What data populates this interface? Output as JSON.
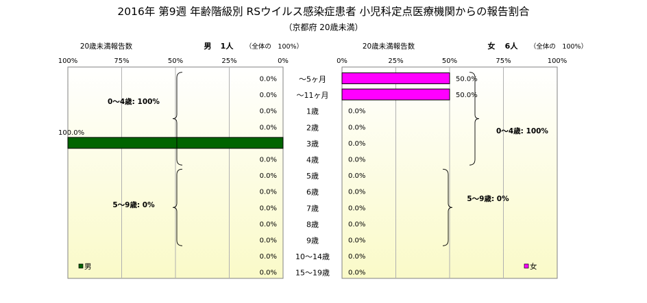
{
  "title": "2016年 第9週 年齢階級別 RSウイルス感染症患者 小児科定点医療機関からの報告割合",
  "subtitle": "（京都府 20歳未満）",
  "colors": {
    "male": "#006400",
    "female": "#ff00ff",
    "bg_top": "#ffffff",
    "bg_bottom": "#fafac8"
  },
  "chart_data": {
    "type": "bar",
    "categories": [
      "～5ヶ月",
      "～11ヶ月",
      "1歳",
      "2歳",
      "3歳",
      "4歳",
      "5歳",
      "6歳",
      "7歳",
      "8歳",
      "9歳",
      "10～14歳",
      "15～19歳"
    ],
    "xlim": [
      0,
      100
    ],
    "x_ticks": [
      "0%",
      "25%",
      "50%",
      "75%",
      "100%"
    ],
    "male": {
      "header_left": "20歳未満報告数",
      "header_label": "男",
      "header_count": "1人",
      "header_share": "（全体の　100%）",
      "legend": "男",
      "values": [
        0,
        0,
        0,
        0,
        100,
        0,
        0,
        0,
        0,
        0,
        0,
        0,
        0
      ],
      "value_labels": [
        "0.0%",
        "0.0%",
        "0.0%",
        "0.0%",
        "100.0%",
        "0.0%",
        "0.0%",
        "0.0%",
        "0.0%",
        "0.0%",
        "0.0%",
        "0.0%",
        "0.0%"
      ],
      "groups": [
        {
          "label": "0～4歳: 100%",
          "from": 0,
          "to": 5
        },
        {
          "label": "5～9歳: 0%",
          "from": 6,
          "to": 10
        }
      ]
    },
    "female": {
      "header_left": "20歳未満報告数",
      "header_label": "女",
      "header_count": "6人",
      "header_share": "（全体の　100%）",
      "legend": "女",
      "values": [
        50,
        50,
        0,
        0,
        0,
        0,
        0,
        0,
        0,
        0,
        0,
        0,
        0
      ],
      "value_labels": [
        "50.0%",
        "50.0%",
        "0.0%",
        "0.0%",
        "0.0%",
        "0.0%",
        "0.0%",
        "0.0%",
        "0.0%",
        "0.0%",
        "0.0%",
        "0.0%",
        "0.0%"
      ],
      "groups": [
        {
          "label": "0～4歳: 100%",
          "from": 0,
          "to": 5
        },
        {
          "label": "5～9歳: 0%",
          "from": 6,
          "to": 10
        }
      ]
    }
  }
}
